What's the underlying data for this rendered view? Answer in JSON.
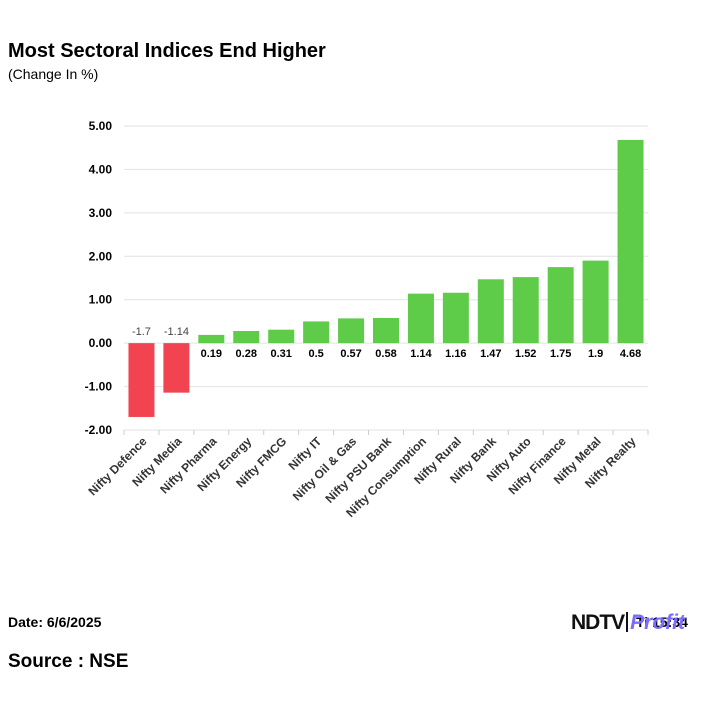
{
  "header": {
    "title": "Most Sectoral Indices End Higher",
    "subtitle": "(Change In %)"
  },
  "footer": {
    "date": "Date: 6/6/2025",
    "time_partial": "Ti     15:34",
    "source": "Source : NSE",
    "logo_ndtv": "NDTV",
    "logo_profit": "Profit"
  },
  "colors": {
    "positive": "#5ecb49",
    "negative": "#f24450",
    "grid": "#e2e2e2",
    "axis": "#cccccc"
  },
  "chart_data": {
    "type": "bar",
    "title": "Most Sectoral Indices End Higher",
    "subtitle": "(Change In %)",
    "categories": [
      "Nifty Defence",
      "Nifty Media",
      "Nifty Pharma",
      "Nifty Energy",
      "Nifty FMCG",
      "Nifty IT",
      "Nifty Oil & Gas",
      "Nifty PSU Bank",
      "Nifty Consumption",
      "Nifty Rural",
      "Nifty Bank",
      "Nifty Auto",
      "Nifty Finance",
      "Nifty Metal",
      "Nifty Realty"
    ],
    "values": [
      -1.7,
      -1.14,
      0.19,
      0.28,
      0.31,
      0.5,
      0.57,
      0.58,
      1.14,
      1.16,
      1.47,
      1.52,
      1.75,
      1.9,
      4.68
    ],
    "data_labels": [
      "-1.7",
      "-1.14",
      "0.19",
      "0.28",
      "0.31",
      "0.5",
      "0.57",
      "0.58",
      "1.14",
      "1.16",
      "1.47",
      "1.52",
      "1.75",
      "1.9",
      "4.68"
    ],
    "yticks": [
      "5.00",
      "4.00",
      "3.00",
      "2.00",
      "1.00",
      "0.00",
      "-1.00",
      "-2.00"
    ],
    "ytick_values": [
      5,
      4,
      3,
      2,
      1,
      0,
      -1,
      -2
    ],
    "ylim": [
      -2,
      5
    ],
    "grid": true,
    "legend": "none"
  }
}
